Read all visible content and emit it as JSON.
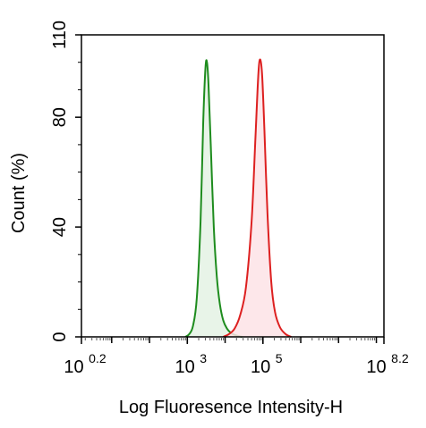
{
  "chart_data": {
    "type": "area",
    "title": "",
    "xlabel": "Log Fluoresence Intensity-H",
    "ylabel": "Count  (%)",
    "x_scale": "log10",
    "xlim": [
      0.2,
      8.2
    ],
    "ylim": [
      0,
      110
    ],
    "x_ticks": [
      {
        "value": 0.2,
        "base": "10",
        "exp": "0.2"
      },
      {
        "value": 3,
        "base": "10",
        "exp": "3"
      },
      {
        "value": 5,
        "base": "10",
        "exp": "5"
      },
      {
        "value": 8.2,
        "base": "10",
        "exp": "8.2"
      }
    ],
    "y_ticks": [
      {
        "value": 0,
        "label": "0"
      },
      {
        "value": 40,
        "label": "40"
      },
      {
        "value": 80,
        "label": "80"
      },
      {
        "value": 110,
        "label": "110"
      }
    ],
    "grid": false,
    "legend": "none",
    "series": [
      {
        "color": "#1e8c1e",
        "fill": "#e4f2e4",
        "points": [
          [
            2.95,
            0
          ],
          [
            3.05,
            1
          ],
          [
            3.15,
            4
          ],
          [
            3.25,
            14
          ],
          [
            3.35,
            42
          ],
          [
            3.42,
            78
          ],
          [
            3.48,
            98
          ],
          [
            3.52,
            100
          ],
          [
            3.56,
            92
          ],
          [
            3.62,
            70
          ],
          [
            3.7,
            40
          ],
          [
            3.78,
            22
          ],
          [
            3.86,
            12
          ],
          [
            3.95,
            6
          ],
          [
            4.05,
            3
          ],
          [
            4.15,
            1.5
          ],
          [
            4.3,
            0.5
          ],
          [
            4.45,
            0
          ]
        ]
      },
      {
        "color": "#dd2020",
        "fill": "#fde3e6",
        "points": [
          [
            3.95,
            0
          ],
          [
            4.1,
            1
          ],
          [
            4.25,
            3
          ],
          [
            4.4,
            8
          ],
          [
            4.55,
            18
          ],
          [
            4.7,
            42
          ],
          [
            4.8,
            72
          ],
          [
            4.88,
            96
          ],
          [
            4.93,
            101
          ],
          [
            4.98,
            95
          ],
          [
            5.04,
            75
          ],
          [
            5.12,
            45
          ],
          [
            5.22,
            20
          ],
          [
            5.32,
            9
          ],
          [
            5.45,
            3.5
          ],
          [
            5.6,
            1
          ],
          [
            5.75,
            0
          ]
        ]
      }
    ]
  }
}
